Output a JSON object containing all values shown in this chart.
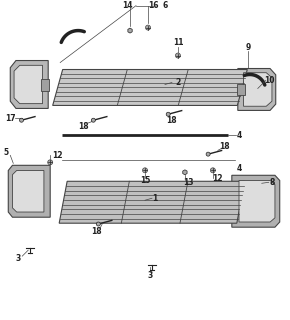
{
  "bg_color": "#ffffff",
  "line_color": "#444444",
  "part_color": "#999999",
  "dark_color": "#222222",
  "mid_color": "#bbbbbb",
  "light_color": "#dddddd",
  "figsize": [
    2.9,
    3.2
  ],
  "dpi": 100
}
